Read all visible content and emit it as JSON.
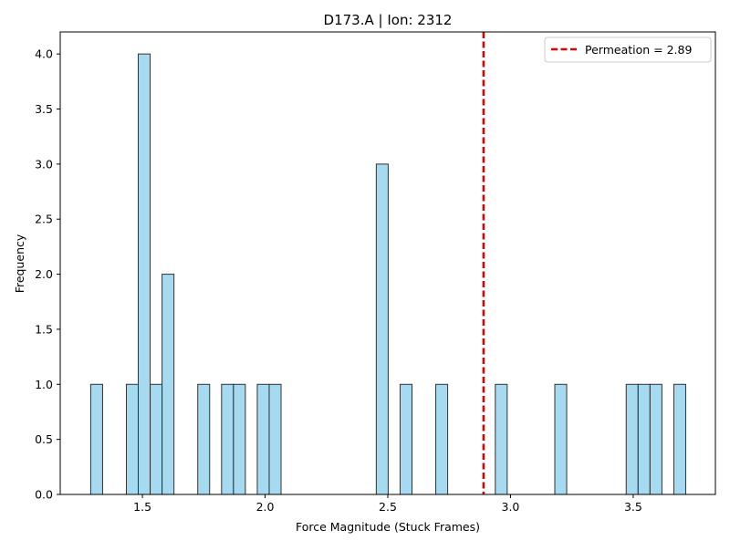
{
  "chart_data": {
    "type": "bar",
    "title": "D173.A | Ion: 2312",
    "xlabel": "Force Magnitude (Stuck Frames)",
    "ylabel": "Frequency",
    "xlim": [
      1.165,
      3.835
    ],
    "ylim": [
      0,
      4.2
    ],
    "xticks": [
      1.5,
      2.0,
      2.5,
      3.0,
      3.5
    ],
    "xtick_labels": [
      "1.5",
      "2.0",
      "2.5",
      "3.0",
      "3.5"
    ],
    "yticks": [
      0,
      0.5,
      1.0,
      1.5,
      2.0,
      2.5,
      3.0,
      3.5,
      4.0
    ],
    "ytick_labels": [
      "0.0",
      "0.5",
      "1.0",
      "1.5",
      "2.0",
      "2.5",
      "3.0",
      "3.5",
      "4.0"
    ],
    "bin_width": 0.0485,
    "bars": [
      {
        "left": 1.2892,
        "value": 1
      },
      {
        "left": 1.4345,
        "value": 1
      },
      {
        "left": 1.483,
        "value": 4
      },
      {
        "left": 1.5315,
        "value": 1
      },
      {
        "left": 1.58,
        "value": 2
      },
      {
        "left": 1.7255,
        "value": 1
      },
      {
        "left": 1.8225,
        "value": 1
      },
      {
        "left": 1.871,
        "value": 1
      },
      {
        "left": 1.968,
        "value": 1
      },
      {
        "left": 2.0165,
        "value": 1
      },
      {
        "left": 2.453,
        "value": 3
      },
      {
        "left": 2.55,
        "value": 1
      },
      {
        "left": 2.6955,
        "value": 1
      },
      {
        "left": 2.938,
        "value": 1
      },
      {
        "left": 3.1805,
        "value": 1
      },
      {
        "left": 3.4715,
        "value": 1
      },
      {
        "left": 3.52,
        "value": 1
      },
      {
        "left": 3.5685,
        "value": 1
      },
      {
        "left": 3.6655,
        "value": 1
      }
    ],
    "bar_color": "#87ceeb",
    "bar_edge_color": "#333333",
    "reference_line": {
      "x": 2.89,
      "color": "#e00000",
      "label": "Permeation = 2.89"
    },
    "grid": false,
    "legend_position": "top-right"
  }
}
